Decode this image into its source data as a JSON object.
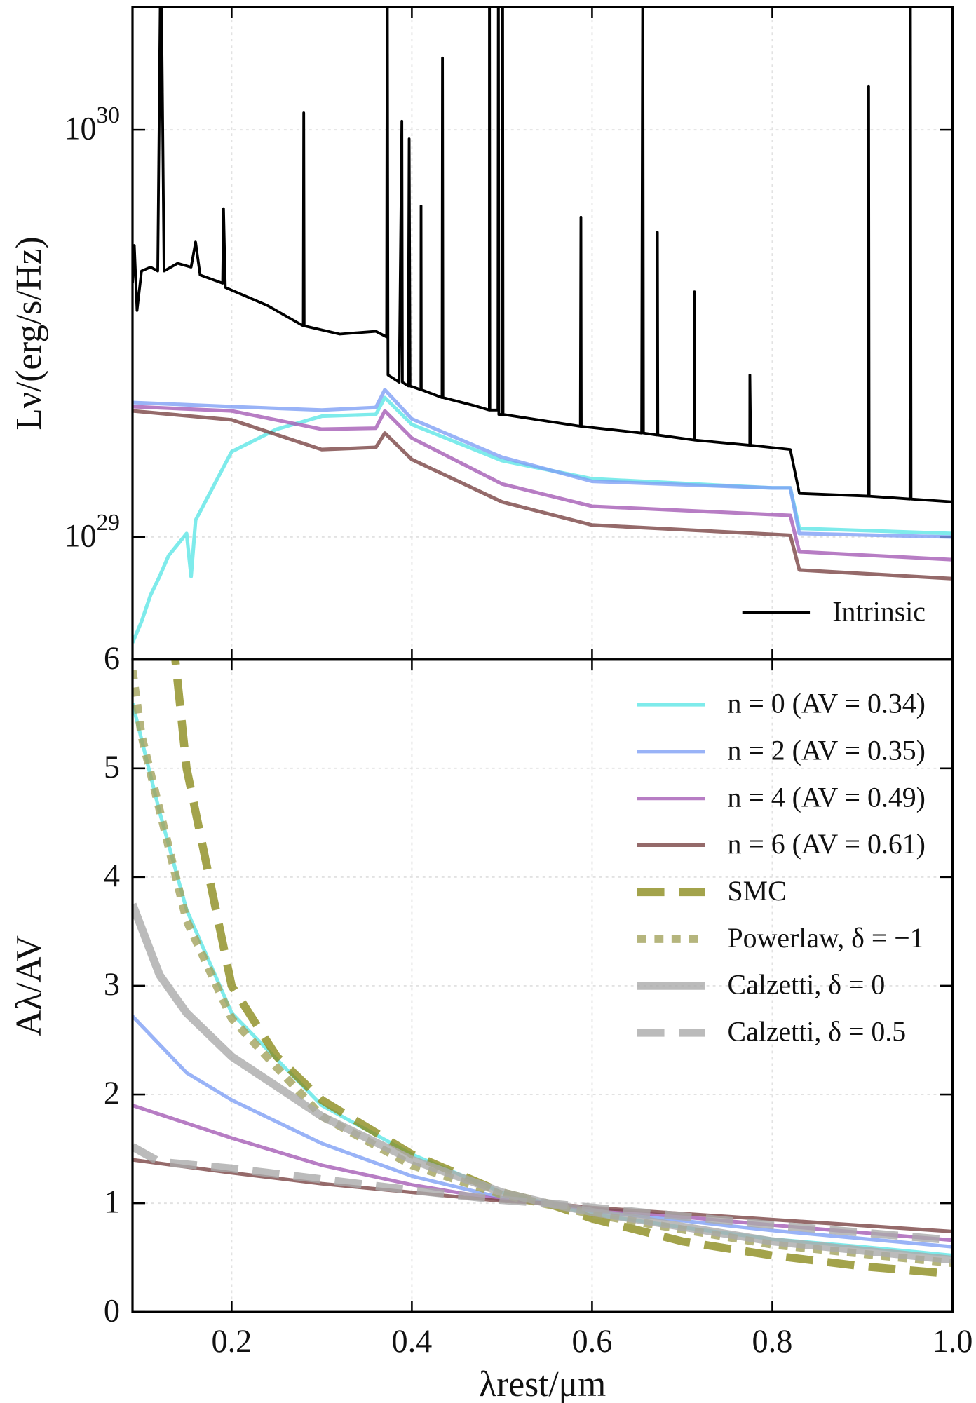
{
  "chart_data": [
    {
      "type": "line",
      "yscale": "log",
      "grid": true,
      "xticklabels": false,
      "legend": "lower right",
      "ylabel": "Lν/(erg/s/Hz)",
      "xlim": [
        0.09,
        1.0
      ],
      "xticks": [
        0.2,
        0.4,
        0.6,
        0.8,
        1.0
      ],
      "ylim": [
        5e+28,
        2e+30
      ],
      "yticks": [
        {
          "value": 1e+29,
          "label": "10^29"
        },
        {
          "value": 1e+30,
          "label": "10^30"
        }
      ],
      "series": [
        {
          "color": "#5ee6e6",
          "linestyle": "solid",
          "linewidth": 4,
          "x": [
            0.09,
            0.1,
            0.11,
            0.12,
            0.13,
            0.15,
            0.155,
            0.16,
            0.2,
            0.25,
            0.3,
            0.36,
            0.37,
            0.4,
            0.5,
            0.6,
            0.8,
            0.82,
            0.83,
            1.0
          ],
          "values": [
            5.5e+28,
            6.2e+28,
            7.2e+28,
            8e+28,
            9e+28,
            1.02e+29,
            8e+28,
            1.1e+29,
            1.62e+29,
            1.84e+29,
            1.98e+29,
            2e+29,
            2.2e+29,
            1.89e+29,
            1.54e+29,
            1.39e+29,
            1.32e+29,
            1.32e+29,
            1.05e+29,
            1.02e+29
          ]
        },
        {
          "color": "#7fa0f5",
          "linestyle": "solid",
          "linewidth": 4,
          "x": [
            0.09,
            0.2,
            0.3,
            0.36,
            0.37,
            0.4,
            0.5,
            0.6,
            0.8,
            0.82,
            0.83,
            1.0
          ],
          "values": [
            2.14e+29,
            2.09e+29,
            2.05e+29,
            2.08e+29,
            2.3e+29,
            1.95e+29,
            1.57e+29,
            1.37e+29,
            1.32e+29,
            1.32e+29,
            1.02e+29,
            1e+29
          ]
        },
        {
          "color": "#a55cb5",
          "linestyle": "solid",
          "linewidth": 4,
          "x": [
            0.09,
            0.2,
            0.3,
            0.36,
            0.37,
            0.4,
            0.5,
            0.6,
            0.82,
            0.83,
            1.0
          ],
          "values": [
            2.09e+29,
            2.04e+29,
            1.84e+29,
            1.85e+29,
            2.04e+29,
            1.75e+29,
            1.35e+29,
            1.19e+29,
            1.13e+29,
            9.2e+28,
            8.8e+28
          ]
        },
        {
          "color": "#7a4545",
          "linestyle": "solid",
          "linewidth": 4,
          "x": [
            0.09,
            0.2,
            0.3,
            0.36,
            0.37,
            0.4,
            0.5,
            0.6,
            0.82,
            0.83,
            1.0
          ],
          "values": [
            2.04e+29,
            1.94e+29,
            1.64e+29,
            1.66e+29,
            1.8e+29,
            1.55e+29,
            1.22e+29,
            1.07e+29,
            1.01e+29,
            8.3e+28,
            7.9e+28
          ]
        },
        {
          "name": "Intrinsic",
          "color": "#000000",
          "linestyle": "solid",
          "linewidth": 3,
          "x": [
            0.09,
            0.092,
            0.095,
            0.1,
            0.11,
            0.118,
            0.1215,
            0.125,
            0.14,
            0.155,
            0.16,
            0.165,
            0.19,
            0.191,
            0.193,
            0.24,
            0.2795,
            0.28,
            0.2805,
            0.32,
            0.36,
            0.372,
            0.3727,
            0.3735,
            0.386,
            0.3889,
            0.3895,
            0.396,
            0.397,
            0.398,
            0.41,
            0.4102,
            0.4105,
            0.4335,
            0.434,
            0.4345,
            0.47,
            0.486,
            0.4861,
            0.4866,
            0.4955,
            0.496,
            0.4965,
            0.5002,
            0.5007,
            0.5012,
            0.587,
            0.5876,
            0.588,
            0.655,
            0.6563,
            0.657,
            0.672,
            0.6725,
            0.673,
            0.7135,
            0.7136,
            0.714,
            0.775,
            0.7751,
            0.776,
            0.82,
            0.83,
            0.9065,
            0.9069,
            0.9075,
            0.9528,
            0.9532,
            0.954,
            1.0
          ],
          "values": [
            4.2e+29,
            5.2e+29,
            3.6e+29,
            4.5e+29,
            4.6e+29,
            4.5e+29,
            3e+30,
            4.5e+29,
            4.7e+29,
            4.6e+29,
            5.3e+29,
            4.4e+29,
            4.2e+29,
            6.4e+29,
            4.1e+29,
            3.7e+29,
            3.3e+29,
            1.1e+30,
            3.3e+29,
            3.15e+29,
            3.2e+29,
            3.1e+29,
            3e+30,
            2.5e+29,
            2.4e+29,
            1.05e+30,
            2.4e+29,
            2.35e+29,
            9.5e+29,
            2.35e+29,
            2.3e+29,
            6.5e+29,
            2.3e+29,
            2.2e+29,
            1.5e+30,
            2.2e+29,
            2.1e+29,
            2.05e+29,
            3e+30,
            2.05e+29,
            2.05e+29,
            3e+30,
            2e+29,
            2e+29,
            3e+30,
            2e+29,
            1.87e+29,
            6.1e+29,
            1.87e+29,
            1.8e+29,
            3e+30,
            1.8e+29,
            1.78e+29,
            5.6e+29,
            1.78e+29,
            1.73e+29,
            4e+29,
            1.73e+29,
            1.68e+29,
            2.5e+29,
            1.68e+29,
            1.64e+29,
            1.28e+29,
            1.26e+29,
            1.28e+30,
            1.26e+29,
            1.24e+29,
            3e+30,
            1.24e+29,
            1.22e+29
          ]
        }
      ]
    },
    {
      "type": "line",
      "grid": true,
      "xticklabels": true,
      "legend": "upper right",
      "xlabel": "λrest/μm",
      "ylabel": "Aλ/AV",
      "xlim": [
        0.09,
        1.0
      ],
      "xticks": [
        0.2,
        0.4,
        0.6,
        0.8,
        {
          "value": 1.0,
          "label": "1.0"
        }
      ],
      "ylim": [
        0,
        6
      ],
      "yticks": [
        0,
        1,
        2,
        3,
        4,
        5,
        6
      ],
      "series": [
        {
          "name": "n = 0 (AV = 0.34)",
          "color": "#5ee6e6",
          "linestyle": "solid",
          "linewidth": 4,
          "x": [
            0.09,
            0.12,
            0.15,
            0.2,
            0.3,
            0.4,
            0.5,
            0.55,
            0.6,
            0.7,
            0.8,
            0.9,
            1.0
          ],
          "values": [
            5.6,
            4.6,
            3.7,
            2.75,
            1.9,
            1.45,
            1.1,
            1.0,
            0.9,
            0.78,
            0.67,
            0.6,
            0.52
          ]
        },
        {
          "name": "n = 2 (AV = 0.35)",
          "color": "#7fa0f5",
          "linestyle": "solid",
          "linewidth": 4,
          "x": [
            0.09,
            0.15,
            0.2,
            0.3,
            0.4,
            0.5,
            0.55,
            0.6,
            0.8,
            1.0
          ],
          "values": [
            2.72,
            2.2,
            1.95,
            1.55,
            1.25,
            1.05,
            1.0,
            0.93,
            0.75,
            0.6
          ]
        },
        {
          "name": "n = 4 (AV = 0.49)",
          "color": "#a55cb5",
          "linestyle": "solid",
          "linewidth": 4,
          "x": [
            0.09,
            0.2,
            0.3,
            0.4,
            0.5,
            0.55,
            0.6,
            0.8,
            1.0
          ],
          "values": [
            1.9,
            1.6,
            1.35,
            1.17,
            1.03,
            1.0,
            0.95,
            0.8,
            0.66
          ]
        },
        {
          "name": "n = 6 (AV = 0.61)",
          "color": "#7a4545",
          "linestyle": "solid",
          "linewidth": 4,
          "x": [
            0.09,
            0.2,
            0.3,
            0.4,
            0.5,
            0.55,
            0.6,
            0.8,
            1.0
          ],
          "values": [
            1.4,
            1.28,
            1.18,
            1.1,
            1.02,
            1.0,
            0.96,
            0.85,
            0.74
          ]
        },
        {
          "name": "SMC",
          "color": "#8c8c1e",
          "linestyle": "dashed",
          "linewidth": 9,
          "x": [
            0.135,
            0.15,
            0.2,
            0.25,
            0.3,
            0.4,
            0.5,
            0.55,
            0.6,
            0.7,
            0.8,
            0.9,
            1.0
          ],
          "values": [
            6.2,
            5.0,
            3.0,
            2.35,
            1.95,
            1.45,
            1.1,
            1.0,
            0.86,
            0.65,
            0.52,
            0.42,
            0.35
          ]
        },
        {
          "name": "Powerlaw, δ = −1",
          "color": "#a3a35c",
          "linestyle": "dotted",
          "linewidth": 9,
          "x": [
            0.09,
            0.1,
            0.15,
            0.2,
            0.3,
            0.4,
            0.5,
            0.6,
            0.8,
            1.0
          ],
          "values": [
            5.9,
            5.3,
            3.6,
            2.7,
            1.8,
            1.35,
            1.08,
            0.9,
            0.62,
            0.45
          ]
        },
        {
          "name": "Calzetti, δ = 0",
          "color": "#aaaaaa",
          "linestyle": "solid",
          "linewidth": 9,
          "x": [
            0.09,
            0.12,
            0.15,
            0.2,
            0.3,
            0.4,
            0.5,
            0.55,
            0.6,
            0.8,
            1.0
          ],
          "values": [
            3.75,
            3.1,
            2.75,
            2.35,
            1.8,
            1.4,
            1.1,
            1.0,
            0.92,
            0.65,
            0.48
          ]
        },
        {
          "name": "Calzetti, δ = 0.5",
          "color": "#aaaaaa",
          "linestyle": "dashed",
          "linewidth": 9,
          "x": [
            0.09,
            0.12,
            0.2,
            0.3,
            0.4,
            0.5,
            0.55,
            0.6,
            0.8,
            1.0
          ],
          "values": [
            1.52,
            1.38,
            1.32,
            1.22,
            1.12,
            1.03,
            1.0,
            0.96,
            0.8,
            0.66
          ]
        }
      ]
    }
  ]
}
